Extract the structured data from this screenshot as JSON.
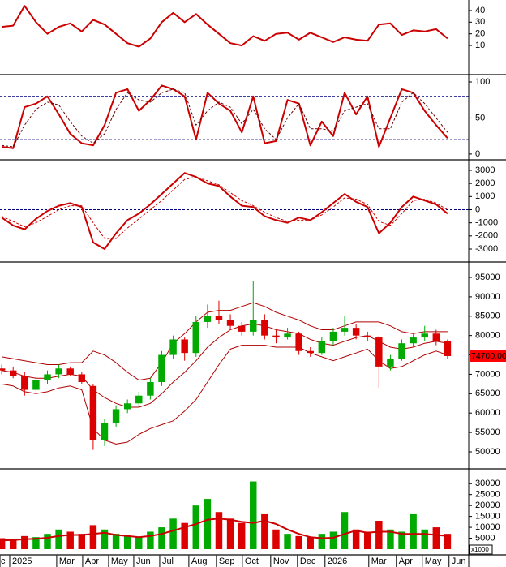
{
  "chart_data": [
    {
      "type": "line",
      "ylim": [
        -15,
        49
      ],
      "yticks": [
        10,
        20,
        30,
        40
      ],
      "series": [
        {
          "color": "#cc0000",
          "width": 2,
          "values": [
            26,
            27,
            44,
            30,
            20,
            26,
            29,
            22,
            32,
            28,
            20,
            12,
            9,
            16,
            30,
            38,
            30,
            37,
            28,
            20,
            12,
            10,
            18,
            14,
            20,
            21,
            15,
            21,
            17,
            13,
            17,
            15,
            14,
            28,
            29,
            19,
            23,
            22,
            24,
            16
          ]
        }
      ]
    },
    {
      "type": "line",
      "ylim": [
        -8,
        109
      ],
      "yticks": [
        0,
        50,
        100
      ],
      "levels": [
        20,
        80
      ],
      "level_color": "#000080",
      "series": [
        {
          "color": "#cc0000",
          "width": 2,
          "values": [
            10,
            8,
            65,
            70,
            80,
            55,
            28,
            15,
            12,
            40,
            85,
            90,
            60,
            75,
            95,
            90,
            80,
            20,
            85,
            70,
            60,
            30,
            80,
            15,
            18,
            75,
            70,
            12,
            45,
            25,
            85,
            55,
            80,
            10,
            50,
            90,
            85,
            60,
            40,
            22
          ]
        },
        {
          "color": "#660000",
          "width": 1,
          "dash": true,
          "values": [
            12,
            10,
            40,
            62,
            72,
            68,
            45,
            25,
            15,
            28,
            62,
            85,
            75,
            72,
            85,
            90,
            85,
            40,
            60,
            72,
            65,
            42,
            62,
            35,
            20,
            50,
            70,
            35,
            35,
            32,
            60,
            65,
            70,
            35,
            35,
            72,
            85,
            70,
            50,
            30
          ]
        }
      ]
    },
    {
      "type": "line",
      "ylim": [
        -3990,
        3740
      ],
      "yticks": [
        -3000,
        -2000,
        -1000,
        0,
        1000,
        2000,
        3000
      ],
      "levels": [
        0
      ],
      "level_color": "#000080",
      "series": [
        {
          "color": "#cc0000",
          "width": 2,
          "values": [
            -600,
            -1200,
            -1500,
            -700,
            -100,
            300,
            500,
            200,
            -2500,
            -3000,
            -1800,
            -800,
            -300,
            400,
            1200,
            2000,
            2800,
            2500,
            2000,
            1800,
            1000,
            300,
            200,
            -500,
            -800,
            -1000,
            -600,
            -800,
            -200,
            500,
            1200,
            600,
            200,
            -1800,
            -1000,
            200,
            1000,
            700,
            400,
            -300
          ]
        },
        {
          "color": "#cc0000",
          "width": 1,
          "dash": true,
          "values": [
            -500,
            -900,
            -1300,
            -1000,
            -500,
            0,
            300,
            300,
            -1000,
            -2200,
            -2200,
            -1400,
            -700,
            0,
            700,
            1500,
            2300,
            2500,
            2200,
            1900,
            1300,
            700,
            300,
            -200,
            -600,
            -900,
            -800,
            -800,
            -400,
            200,
            900,
            800,
            400,
            -900,
            -1200,
            -300,
            700,
            800,
            500,
            0
          ]
        }
      ]
    },
    {
      "type": "candlestick",
      "ylim": [
        45600,
        98770
      ],
      "yticks": [
        50000,
        55000,
        60000,
        65000,
        70000,
        75000,
        80000,
        85000,
        90000,
        95000
      ],
      "up_color": "#00aa00",
      "down_color": "#dd0000",
      "open": [
        71500,
        71000,
        69500,
        66000,
        68500,
        70000,
        71500,
        70000,
        67000,
        53000,
        57500,
        61000,
        62500,
        64500,
        68000,
        75000,
        79000,
        75500,
        83500,
        85000,
        84000,
        82500,
        81000,
        84000,
        80000,
        79500,
        80500,
        76000,
        75500,
        78500,
        81000,
        82000,
        80000,
        79500,
        72000,
        74000,
        78000,
        79500,
        80500,
        78500
      ],
      "high": [
        72500,
        72000,
        70500,
        69500,
        71000,
        72500,
        72000,
        70500,
        67500,
        58500,
        62000,
        63500,
        65500,
        69000,
        76000,
        80000,
        79500,
        85000,
        88000,
        89000,
        85500,
        83500,
        94000,
        85500,
        81500,
        82000,
        81000,
        77000,
        79500,
        82000,
        85000,
        83000,
        81000,
        80000,
        75000,
        79000,
        80500,
        82500,
        81500,
        79000
      ],
      "low": [
        70000,
        69000,
        64500,
        65000,
        67500,
        69000,
        69500,
        67500,
        50500,
        51500,
        56500,
        60000,
        61500,
        63500,
        67000,
        74000,
        73500,
        74500,
        82000,
        83000,
        81500,
        80000,
        80000,
        79000,
        78000,
        79000,
        75000,
        74500,
        75000,
        77500,
        80000,
        79000,
        78500,
        66500,
        71000,
        73500,
        77000,
        78500,
        77500,
        74000
      ],
      "close": [
        71000,
        69500,
        66000,
        68500,
        70000,
        71500,
        70000,
        68000,
        53000,
        57500,
        61000,
        62500,
        64500,
        68000,
        75000,
        79000,
        75500,
        83500,
        85000,
        84000,
        82500,
        81000,
        84000,
        80000,
        79500,
        80500,
        76000,
        75500,
        78500,
        81000,
        82000,
        80000,
        79500,
        72000,
        74000,
        78000,
        79500,
        80500,
        78500,
        74700
      ],
      "last_value_label": "74700.00",
      "label_color": "#ff0000",
      "bands": [
        {
          "color": "#b00000",
          "values": [
            74500,
            74000,
            73500,
            73000,
            72500,
            72500,
            73000,
            73000,
            76000,
            75000,
            73000,
            70500,
            68500,
            69000,
            73000,
            78000,
            80500,
            83500,
            86000,
            86500,
            86500,
            87500,
            88500,
            87500,
            86000,
            85000,
            84000,
            82500,
            81500,
            81500,
            82500,
            83500,
            83500,
            83500,
            82500,
            81000,
            80500,
            81000,
            81000,
            81000
          ]
        },
        {
          "color": "#b00000",
          "values": [
            71000,
            70500,
            69500,
            69000,
            69000,
            69500,
            70000,
            69500,
            66000,
            64000,
            62500,
            61500,
            61500,
            62500,
            65000,
            68000,
            70500,
            73500,
            77000,
            79500,
            81500,
            82500,
            83000,
            82500,
            81500,
            81000,
            80500,
            79000,
            78000,
            77500,
            78500,
            79500,
            80000,
            78500,
            77000,
            76500,
            77000,
            78000,
            78500,
            78000
          ]
        },
        {
          "color": "#b00000",
          "values": [
            67500,
            67000,
            65500,
            65000,
            65500,
            66500,
            67000,
            66000,
            56000,
            53000,
            52000,
            52500,
            54500,
            56000,
            57000,
            58000,
            60500,
            63500,
            68000,
            72500,
            76500,
            77500,
            77500,
            77500,
            77000,
            77000,
            77000,
            75500,
            74500,
            73500,
            74500,
            75500,
            76500,
            73500,
            71500,
            72000,
            73500,
            75000,
            76000,
            75000
          ]
        }
      ]
    },
    {
      "type": "bar",
      "ylim": [
        -2600,
        36400
      ],
      "yticks": [
        0,
        5000,
        10000,
        15000,
        20000,
        25000,
        30000
      ],
      "unit_label": "x1000",
      "up_color": "#00aa00",
      "down_color": "#dd0000",
      "values": [
        5000,
        4500,
        6000,
        5500,
        7000,
        9000,
        8000,
        7000,
        11000,
        9000,
        7000,
        6000,
        5500,
        8000,
        10000,
        14000,
        12000,
        20000,
        23000,
        17000,
        14000,
        12000,
        31000,
        16000,
        9000,
        7000,
        6000,
        5500,
        7000,
        8000,
        17000,
        9000,
        8000,
        13000,
        9000,
        8000,
        16000,
        9000,
        10000,
        7000
      ],
      "average": {
        "color": "#cc0000",
        "values": [
          4000,
          4200,
          4500,
          4800,
          5200,
          6000,
          6500,
          6500,
          7000,
          7500,
          6500,
          6000,
          5500,
          6000,
          7000,
          8500,
          10000,
          11500,
          13500,
          14000,
          13500,
          12500,
          12000,
          13000,
          11500,
          9000,
          7000,
          5500,
          5000,
          5200,
          7000,
          8500,
          7500,
          8000,
          8000,
          7000,
          7000,
          7000,
          6500,
          6000
        ]
      },
      "xlim": [
        -0.15,
        40.85
      ],
      "xticks": [
        {
          "value": -0.15,
          "label": "c"
        },
        {
          "value": 0.7,
          "label": "2025"
        },
        {
          "value": 4.81,
          "label": "Mar"
        },
        {
          "value": 7.08,
          "label": "Apr"
        },
        {
          "value": 9.35,
          "label": "May"
        },
        {
          "value": 11.55,
          "label": "Jun"
        },
        {
          "value": 13.82,
          "label": "Jul"
        },
        {
          "value": 16.37,
          "label": "Aug"
        },
        {
          "value": 18.78,
          "label": "Sep"
        },
        {
          "value": 21.05,
          "label": "Oct"
        },
        {
          "value": 23.53,
          "label": "Nov"
        },
        {
          "value": 25.87,
          "label": "Dec"
        },
        {
          "value": 28.28,
          "label": "2026"
        },
        {
          "value": 32.11,
          "label": "Mar"
        },
        {
          "value": 34.52,
          "label": "Apr"
        },
        {
          "value": 36.79,
          "label": "May"
        },
        {
          "value": 39.13,
          "label": "Jun"
        }
      ]
    }
  ]
}
